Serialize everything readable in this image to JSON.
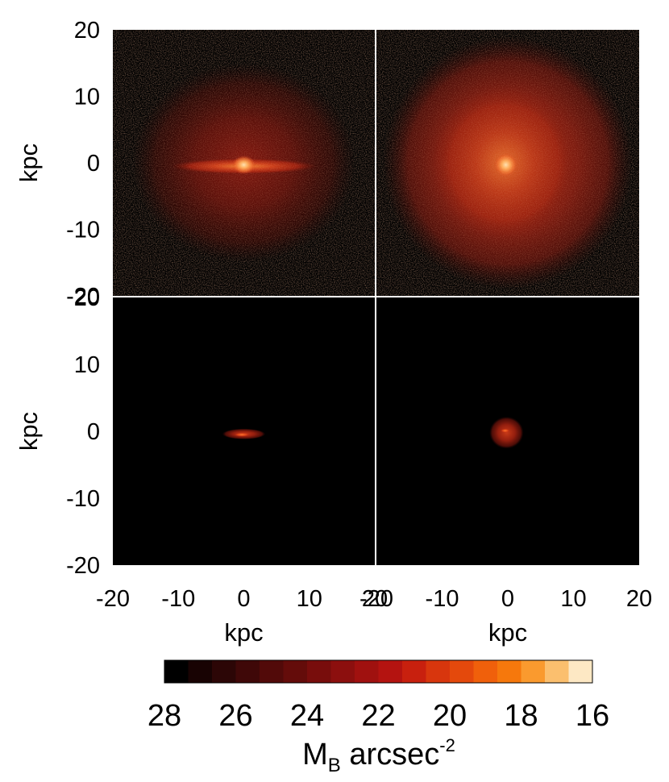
{
  "chart_data": {
    "type": "heatmap",
    "panels": [
      {
        "row": 0,
        "col": 0,
        "view": "edge-on",
        "component": "stellar halo + disc",
        "features": [
          {
            "kind": "halo",
            "cx": 0,
            "cy": 0,
            "rx": 17,
            "ry": 15
          },
          {
            "kind": "disc",
            "cx": 0,
            "cy": -0.5,
            "rx": 11,
            "ry": 1.2
          },
          {
            "kind": "core",
            "cx": 0,
            "cy": -0.3,
            "rx": 1.8,
            "ry": 1.4
          }
        ]
      },
      {
        "row": 0,
        "col": 1,
        "view": "face-on",
        "component": "stellar halo + disc",
        "features": [
          {
            "kind": "halo",
            "cx": 0,
            "cy": 0,
            "rx": 19,
            "ry": 19
          },
          {
            "kind": "spiral-disc",
            "cx": -0.5,
            "cy": 0,
            "rx": 11,
            "ry": 11.5
          },
          {
            "kind": "core",
            "cx": -0.3,
            "cy": -0.3,
            "rx": 1.8,
            "ry": 1.8
          }
        ]
      },
      {
        "row": 1,
        "col": 0,
        "view": "edge-on",
        "component": "disc only",
        "features": [
          {
            "kind": "disc",
            "cx": 0,
            "cy": -0.4,
            "rx": 3.3,
            "ry": 0.8
          },
          {
            "kind": "core",
            "cx": -0.3,
            "cy": -0.5,
            "rx": 1.2,
            "ry": 0.3
          }
        ]
      },
      {
        "row": 1,
        "col": 1,
        "view": "face-on",
        "component": "disc only",
        "features": [
          {
            "kind": "disc",
            "cx": -0.2,
            "cy": -0.2,
            "rx": 2.6,
            "ry": 2.4
          },
          {
            "kind": "core",
            "cx": -0.4,
            "cy": 0.1,
            "rx": 0.7,
            "ry": 0.3
          }
        ]
      }
    ],
    "xlim": [
      -20,
      20
    ],
    "ylim": [
      -20,
      20
    ],
    "x_ticks": [
      -20,
      -10,
      0,
      10,
      20
    ],
    "y_ticks": [
      20,
      10,
      0,
      -10,
      -20
    ],
    "xlabel": "kpc",
    "ylabel": "kpc",
    "colorbar": {
      "ticks": [
        28,
        26,
        24,
        22,
        20,
        18,
        16
      ],
      "label_main": "M",
      "label_sub": "B",
      "label_rest": " arcsec",
      "label_sup": "-2",
      "range": [
        28,
        16
      ],
      "colors": [
        "#000000",
        "#180303",
        "#2c0606",
        "#3f0808",
        "#520a09",
        "#640c0a",
        "#780d0c",
        "#8c0f0e",
        "#a0110f",
        "#b41310",
        "#c8200e",
        "#d8360d",
        "#e4490c",
        "#f0600b",
        "#f6780c",
        "#fa9a2e",
        "#fbbf6e",
        "#fde8c4"
      ]
    }
  }
}
